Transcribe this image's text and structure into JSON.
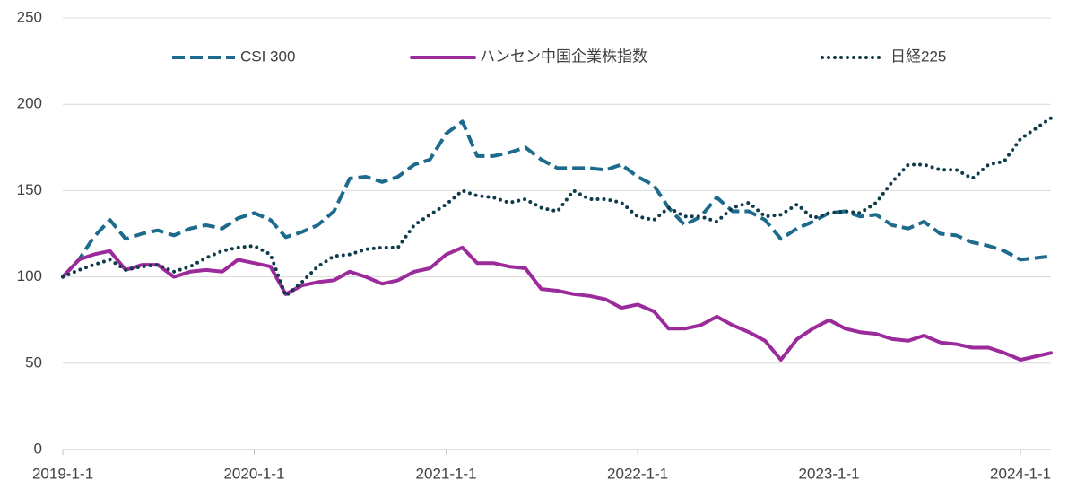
{
  "chart_data": {
    "type": "line",
    "x": [
      "2019-1-1",
      "2019-2-1",
      "2019-3-1",
      "2019-4-1",
      "2019-5-1",
      "2019-6-1",
      "2019-7-1",
      "2019-8-1",
      "2019-9-1",
      "2019-10-1",
      "2019-11-1",
      "2019-12-1",
      "2020-1-1",
      "2020-2-1",
      "2020-3-1",
      "2020-4-1",
      "2020-5-1",
      "2020-6-1",
      "2020-7-1",
      "2020-8-1",
      "2020-9-1",
      "2020-10-1",
      "2020-11-1",
      "2020-12-1",
      "2021-1-1",
      "2021-2-1",
      "2021-3-1",
      "2021-4-1",
      "2021-5-1",
      "2021-6-1",
      "2021-7-1",
      "2021-8-1",
      "2021-9-1",
      "2021-10-1",
      "2021-11-1",
      "2021-12-1",
      "2022-1-1",
      "2022-2-1",
      "2022-3-1",
      "2022-4-1",
      "2022-5-1",
      "2022-6-1",
      "2022-7-1",
      "2022-8-1",
      "2022-9-1",
      "2022-10-1",
      "2022-11-1",
      "2022-12-1",
      "2023-1-1",
      "2023-2-1",
      "2023-3-1",
      "2023-4-1",
      "2023-5-1",
      "2023-6-1",
      "2023-7-1",
      "2023-8-1",
      "2023-9-1",
      "2023-10-1",
      "2023-11-1",
      "2023-12-1",
      "2024-1-1",
      "2024-2-28"
    ],
    "series": [
      {
        "name": "CSI 300",
        "color": "#1d6b8c",
        "style": "dashed",
        "values": [
          100,
          110,
          123,
          133,
          122,
          125,
          127,
          124,
          128,
          130,
          128,
          134,
          137,
          133,
          123,
          126,
          130,
          138,
          157,
          158,
          155,
          158,
          165,
          168,
          183,
          190,
          170,
          170,
          172,
          175,
          168,
          163,
          163,
          163,
          162,
          165,
          158,
          153,
          140,
          130,
          135,
          146,
          138,
          138,
          133,
          122,
          128,
          132,
          137,
          138,
          135,
          136,
          130,
          128,
          132,
          125,
          124,
          120,
          118,
          115,
          110,
          112
        ]
      },
      {
        "name": "ハンセン中国企業株指数",
        "color": "#9b2a9b",
        "style": "solid",
        "values": [
          100,
          110,
          113,
          115,
          104,
          107,
          107,
          100,
          103,
          104,
          103,
          110,
          108,
          106,
          90,
          95,
          97,
          98,
          103,
          100,
          96,
          98,
          103,
          105,
          113,
          117,
          108,
          108,
          106,
          105,
          93,
          92,
          90,
          89,
          87,
          82,
          84,
          80,
          70,
          70,
          72,
          77,
          72,
          68,
          63,
          52,
          64,
          70,
          75,
          70,
          68,
          67,
          64,
          63,
          66,
          62,
          61,
          59,
          59,
          56,
          52,
          56
        ]
      },
      {
        "name": "日経225",
        "color": "#0e3a4a",
        "style": "dotted",
        "values": [
          100,
          104,
          107,
          110,
          104,
          106,
          107,
          103,
          106,
          111,
          115,
          117,
          118,
          113,
          89,
          97,
          106,
          112,
          113,
          116,
          117,
          117,
          130,
          136,
          142,
          150,
          147,
          146,
          143,
          145,
          140,
          138,
          150,
          145,
          145,
          143,
          135,
          133,
          140,
          135,
          135,
          132,
          140,
          143,
          135,
          136,
          142,
          134,
          137,
          138,
          137,
          143,
          155,
          165,
          165,
          162,
          162,
          157,
          165,
          167,
          180,
          192
        ]
      }
    ],
    "xlim": [
      "2019-1-1",
      "2024-2-28"
    ],
    "xticks": [
      "2019-1-1",
      "2020-1-1",
      "2021-1-1",
      "2022-1-1",
      "2023-1-1",
      "2024-1-1"
    ],
    "ylim": [
      0,
      250
    ],
    "yticks": [
      0,
      50,
      100,
      150,
      200,
      250
    ],
    "grid": true,
    "legend": "top"
  }
}
